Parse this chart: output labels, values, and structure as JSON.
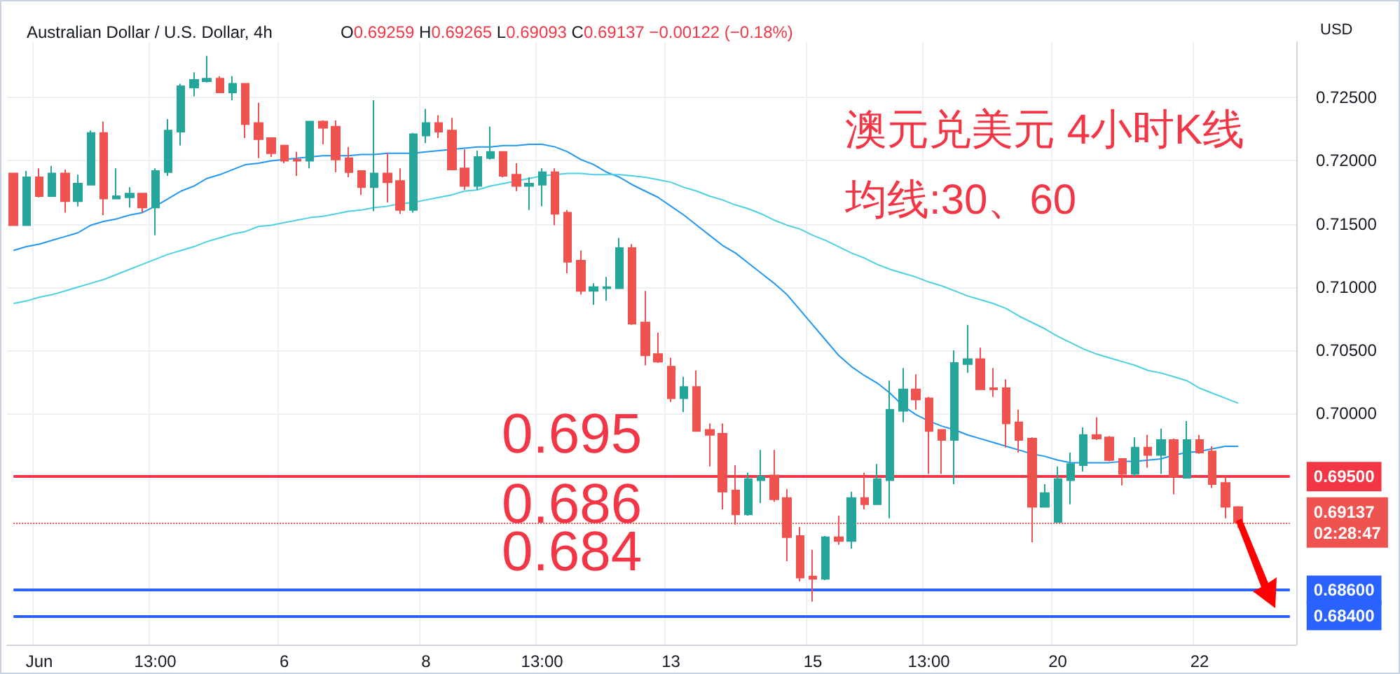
{
  "chart_data": {
    "type": "candlestick",
    "title": "Australian Dollar / U.S. Dollar, 4h",
    "subtitle": "O0.69259 H0.69265 L0.69093 C0.69137 −0.00122 (−0.18%)",
    "ylabel": "USD",
    "annotations": [
      "澳元兑美元 4小时K线",
      "均线:30、60",
      "0.695",
      "0.686",
      "0.684"
    ],
    "categories": [
      null,
      null,
      "Jun",
      null,
      null,
      null,
      null,
      null,
      null,
      null,
      null,
      "13:00",
      null,
      null,
      null,
      null,
      null,
      null,
      null,
      null,
      null,
      "6",
      null,
      null,
      null,
      null,
      null,
      null,
      null,
      null,
      null,
      null,
      "8",
      null,
      null,
      null,
      null,
      null,
      null,
      null,
      null,
      "13:00",
      null,
      null,
      null,
      null,
      null,
      null,
      null,
      null,
      null,
      "13",
      null,
      null,
      null,
      null,
      null,
      null,
      null,
      null,
      null,
      null,
      "15",
      null,
      null,
      null,
      null,
      null,
      null,
      null,
      null,
      "13:00",
      null,
      null,
      null,
      null,
      null,
      null,
      null,
      null,
      null,
      "20",
      null,
      null,
      null,
      null,
      null,
      null,
      null,
      null,
      null,
      null,
      "22",
      null,
      null,
      null,
      null,
      null,
      null,
      null
    ],
    "series": [
      {
        "type": "candlestick",
        "ohlc": [
          [
            0.719,
            0.719,
            0.7149,
            0.7149
          ],
          [
            0.7149,
            0.7192,
            0.7149,
            0.7187
          ],
          [
            0.7187,
            0.7194,
            0.7171,
            0.7172
          ],
          [
            0.7172,
            0.7196,
            0.7172,
            0.719
          ],
          [
            0.719,
            0.7193,
            0.7159,
            0.7168
          ],
          [
            0.7168,
            0.7189,
            0.7164,
            0.7182
          ],
          [
            0.7181,
            0.7224,
            0.7181,
            0.7222
          ],
          [
            0.7222,
            0.7231,
            0.7157,
            0.717
          ],
          [
            0.717,
            0.7194,
            0.717,
            0.7172
          ],
          [
            0.7171,
            0.7179,
            0.7163,
            0.7174
          ],
          [
            0.7174,
            0.7174,
            0.7159,
            0.7163
          ],
          [
            0.7163,
            0.7194,
            0.7141,
            0.7192
          ],
          [
            0.7191,
            0.7233,
            0.7188,
            0.7224
          ],
          [
            0.7223,
            0.7261,
            0.7212,
            0.7259
          ],
          [
            0.7258,
            0.727,
            0.7251,
            0.7264
          ],
          [
            0.7263,
            0.7283,
            0.7262,
            0.7265
          ],
          [
            0.7265,
            0.7267,
            0.7254,
            0.7254
          ],
          [
            0.7254,
            0.7267,
            0.7248,
            0.7261
          ],
          [
            0.7261,
            0.7261,
            0.7218,
            0.7229
          ],
          [
            0.723,
            0.7246,
            0.7202,
            0.7217
          ],
          [
            0.7218,
            0.7218,
            0.7203,
            0.7206
          ],
          [
            0.7212,
            0.7212,
            0.7198,
            0.72
          ],
          [
            0.7201,
            0.7207,
            0.7188,
            0.72
          ],
          [
            0.72,
            0.7231,
            0.7194,
            0.7231
          ],
          [
            0.7231,
            0.7232,
            0.7213,
            0.7226
          ],
          [
            0.7227,
            0.7232,
            0.7191,
            0.7201
          ],
          [
            0.7202,
            0.7211,
            0.7187,
            0.7191
          ],
          [
            0.7192,
            0.7192,
            0.7173,
            0.7179
          ],
          [
            0.7179,
            0.7248,
            0.716,
            0.719
          ],
          [
            0.719,
            0.7206,
            0.7167,
            0.7183
          ],
          [
            0.7184,
            0.7194,
            0.7158,
            0.7161
          ],
          [
            0.7161,
            0.7222,
            0.7159,
            0.7221
          ],
          [
            0.722,
            0.7241,
            0.7214,
            0.723
          ],
          [
            0.723,
            0.7236,
            0.7218,
            0.7223
          ],
          [
            0.7224,
            0.7234,
            0.7193,
            0.7193
          ],
          [
            0.7194,
            0.7209,
            0.7177,
            0.718
          ],
          [
            0.718,
            0.7208,
            0.7177,
            0.7203
          ],
          [
            0.7202,
            0.7227,
            0.7201,
            0.7207
          ],
          [
            0.7207,
            0.7207,
            0.7187,
            0.7188
          ],
          [
            0.7189,
            0.7198,
            0.7176,
            0.718
          ],
          [
            0.718,
            0.7187,
            0.7161,
            0.7182
          ],
          [
            0.7181,
            0.7194,
            0.7164,
            0.7191
          ],
          [
            0.7191,
            0.7194,
            0.7149,
            0.7158
          ],
          [
            0.7159,
            0.7161,
            0.7111,
            0.712
          ],
          [
            0.7121,
            0.7129,
            0.7094,
            0.7097
          ],
          [
            0.7097,
            0.7103,
            0.7086,
            0.71
          ],
          [
            0.7099,
            0.7108,
            0.7089,
            0.71
          ],
          [
            0.7099,
            0.7139,
            0.7099,
            0.7131
          ],
          [
            0.7131,
            0.7134,
            0.707,
            0.7071
          ],
          [
            0.7072,
            0.7097,
            0.7038,
            0.7046
          ],
          [
            0.7047,
            0.7064,
            0.704,
            0.7041
          ],
          [
            0.7037,
            0.7044,
            0.7009,
            0.7012
          ],
          [
            0.7012,
            0.7029,
            0.7001,
            0.7021
          ],
          [
            0.7021,
            0.7034,
            0.6986,
            0.6986
          ],
          [
            0.6987,
            0.6992,
            0.6958,
            0.6983
          ],
          [
            0.6984,
            0.6992,
            0.6924,
            0.6938
          ],
          [
            0.6939,
            0.6959,
            0.6912,
            0.692
          ],
          [
            0.692,
            0.6953,
            0.6919,
            0.6948
          ],
          [
            0.6947,
            0.6971,
            0.6929,
            0.695
          ],
          [
            0.6951,
            0.6971,
            0.693,
            0.6932
          ],
          [
            0.6933,
            0.694,
            0.6883,
            0.6902
          ],
          [
            0.6903,
            0.691,
            0.6867,
            0.687
          ],
          [
            0.6871,
            0.6892,
            0.6851,
            0.6869
          ],
          [
            0.6869,
            0.6903,
            0.6868,
            0.6902
          ],
          [
            0.6902,
            0.6919,
            0.6896,
            0.6899
          ],
          [
            0.6899,
            0.6938,
            0.6893,
            0.6933
          ],
          [
            0.6933,
            0.6953,
            0.6924,
            0.6928
          ],
          [
            0.6928,
            0.696,
            0.6928,
            0.6948
          ],
          [
            0.6947,
            0.7026,
            0.6917,
            0.7003
          ],
          [
            0.7002,
            0.7036,
            0.6993,
            0.7019
          ],
          [
            0.7019,
            0.7031,
            0.7003,
            0.7011
          ],
          [
            0.7012,
            0.7013,
            0.6952,
            0.6986
          ],
          [
            0.6987,
            0.6987,
            0.6952,
            0.6979
          ],
          [
            0.6979,
            0.705,
            0.6944,
            0.704
          ],
          [
            0.7039,
            0.707,
            0.7032,
            0.7043
          ],
          [
            0.7043,
            0.7052,
            0.7019,
            0.7019
          ],
          [
            0.702,
            0.7036,
            0.7013,
            0.7019
          ],
          [
            0.702,
            0.7027,
            0.6973,
            0.6992
          ],
          [
            0.6993,
            0.7003,
            0.6969,
            0.6979
          ],
          [
            0.698,
            0.6981,
            0.6898,
            0.6926
          ],
          [
            0.6926,
            0.6944,
            0.6926,
            0.6937
          ],
          [
            0.6914,
            0.6958,
            0.6914,
            0.6948
          ],
          [
            0.6947,
            0.6969,
            0.6928,
            0.696
          ],
          [
            0.6959,
            0.6989,
            0.6954,
            0.6983
          ],
          [
            0.6983,
            0.6997,
            0.6979,
            0.698
          ],
          [
            0.6981,
            0.6982,
            0.6962,
            0.6963
          ],
          [
            0.6964,
            0.6964,
            0.6943,
            0.6952
          ],
          [
            0.6952,
            0.6981,
            0.695,
            0.6973
          ],
          [
            0.6973,
            0.6983,
            0.6957,
            0.6967
          ],
          [
            0.6967,
            0.6988,
            0.6952,
            0.6979
          ],
          [
            0.6979,
            0.698,
            0.6936,
            0.695
          ],
          [
            0.6949,
            0.6994,
            0.6949,
            0.6979
          ],
          [
            0.6979,
            0.6983,
            0.6968,
            0.6969
          ],
          [
            0.697,
            0.6974,
            0.6941,
            0.6944
          ],
          [
            0.6945,
            0.6951,
            0.6917,
            0.6926
          ],
          [
            0.69259,
            0.69265,
            0.69093,
            0.69137
          ],
          null,
          null,
          null,
          null
        ],
        "colors": [
          "#ef5350",
          "#26a69a",
          "#ef5350",
          "#26a69a",
          "#ef5350",
          "#26a69a",
          "#26a69a",
          "#ef5350",
          "#26a69a",
          "#26a69a",
          "#ef5350",
          "#26a69a",
          "#26a69a",
          "#26a69a",
          "#26a69a",
          "#26a69a",
          "#ef5350",
          "#26a69a",
          "#ef5350",
          "#ef5350",
          "#ef5350",
          "#ef5350",
          "#ef5350",
          "#26a69a",
          "#ef5350",
          "#ef5350",
          "#ef5350",
          "#ef5350",
          "#26a69a",
          "#ef5350",
          "#ef5350",
          "#26a69a",
          "#26a69a",
          "#ef5350",
          "#ef5350",
          "#ef5350",
          "#26a69a",
          "#26a69a",
          "#ef5350",
          "#ef5350",
          "#26a69a",
          "#26a69a",
          "#ef5350",
          "#ef5350",
          "#ef5350",
          "#26a69a",
          "#26a69a",
          "#26a69a",
          "#ef5350",
          "#ef5350",
          "#ef5350",
          "#ef5350",
          "#26a69a",
          "#ef5350",
          "#ef5350",
          "#ef5350",
          "#ef5350",
          "#26a69a",
          "#26a69a",
          "#ef5350",
          "#ef5350",
          "#ef5350",
          "#ef5350",
          "#26a69a",
          "#ef5350",
          "#26a69a",
          "#ef5350",
          "#26a69a",
          "#26a69a",
          "#26a69a",
          "#ef5350",
          "#ef5350",
          "#ef5350",
          "#26a69a",
          "#26a69a",
          "#ef5350",
          "#ef5350",
          "#ef5350",
          "#ef5350",
          "#ef5350",
          "#26a69a",
          "#26a69a",
          "#26a69a",
          "#26a69a",
          "#ef5350",
          "#ef5350",
          "#ef5350",
          "#26a69a",
          "#ef5350",
          "#26a69a",
          "#ef5350",
          "#26a69a",
          "#ef5350",
          "#ef5350",
          "#ef5350",
          "#ef5350",
          null,
          null,
          null,
          null
        ]
      },
      {
        "type": "line",
        "color": "#2196f3",
        "values": [
          0.7129,
          0.7132,
          0.7134,
          0.7137,
          0.714,
          0.7143,
          0.7149,
          0.7152,
          0.7154,
          0.7157,
          0.7159,
          0.7164,
          0.717,
          0.7176,
          0.718,
          0.7186,
          0.7189,
          0.7193,
          0.7197,
          0.7198,
          0.72,
          0.7201,
          0.7202,
          0.7203,
          0.7204,
          0.7204,
          0.7204,
          0.7205,
          0.7205,
          0.7206,
          0.7206,
          0.7206,
          0.7207,
          0.7208,
          0.7209,
          0.721,
          0.7211,
          0.7211,
          0.7212,
          0.7212,
          0.7213,
          0.7213,
          0.7211,
          0.7207,
          0.7201,
          0.7197,
          0.7191,
          0.7187,
          0.7181,
          0.7176,
          0.7171,
          0.7164,
          0.7157,
          0.7149,
          0.7141,
          0.7133,
          0.7127,
          0.7119,
          0.7111,
          0.7103,
          0.7094,
          0.7082,
          0.707,
          0.7058,
          0.7046,
          0.7037,
          0.703,
          0.7024,
          0.7016,
          0.7006,
          0.6999,
          0.6994,
          0.699,
          0.6987,
          0.6983,
          0.698,
          0.6977,
          0.6974,
          0.6971,
          0.6968,
          0.6966,
          0.6963,
          0.6961,
          0.6961,
          0.6961,
          0.6961,
          0.6962,
          0.6962,
          0.6963,
          0.6964,
          0.6967,
          0.6969,
          0.697,
          0.6972,
          0.6974,
          0.6974,
          null,
          null,
          null,
          null
        ]
      },
      {
        "type": "line",
        "color": "#4dd0e1",
        "values": [
          0.7087,
          0.7089,
          0.7092,
          0.7094,
          0.7097,
          0.71,
          0.7103,
          0.7106,
          0.711,
          0.7114,
          0.7118,
          0.7122,
          0.7126,
          0.7129,
          0.7132,
          0.7136,
          0.7139,
          0.7142,
          0.7144,
          0.7148,
          0.7149,
          0.7151,
          0.7153,
          0.7155,
          0.7156,
          0.7158,
          0.716,
          0.7161,
          0.7163,
          0.7164,
          0.7166,
          0.7167,
          0.7169,
          0.7171,
          0.7173,
          0.7176,
          0.7177,
          0.718,
          0.7182,
          0.7184,
          0.7186,
          0.7188,
          0.7189,
          0.719,
          0.719,
          0.7189,
          0.7189,
          0.7189,
          0.7188,
          0.7187,
          0.7185,
          0.7183,
          0.7179,
          0.7176,
          0.7172,
          0.7169,
          0.7165,
          0.7162,
          0.7158,
          0.7153,
          0.7149,
          0.7146,
          0.7141,
          0.7137,
          0.7132,
          0.7127,
          0.7123,
          0.7118,
          0.7114,
          0.7111,
          0.7108,
          0.7104,
          0.7101,
          0.7097,
          0.7093,
          0.709,
          0.7087,
          0.7083,
          0.7077,
          0.7072,
          0.7067,
          0.7061,
          0.7056,
          0.7051,
          0.7047,
          0.7044,
          0.7041,
          0.7038,
          0.7034,
          0.7032,
          0.7029,
          0.7026,
          0.702,
          0.7016,
          0.7012,
          0.7008,
          null,
          null,
          null,
          null
        ]
      }
    ],
    "ylim": [
      0.6817,
      0.7294
    ],
    "yticks": [
      {
        "value": 0.7,
        "label": "0.70000"
      },
      {
        "value": 0.705,
        "label": "0.70500"
      },
      {
        "value": 0.71,
        "label": "0.71000"
      },
      {
        "value": 0.715,
        "label": "0.71500"
      },
      {
        "value": 0.72,
        "label": "0.72000"
      },
      {
        "value": 0.725,
        "label": "0.72500"
      }
    ],
    "ref_lines": [
      {
        "axis": "y",
        "value": 0.695,
        "label": "0.69500",
        "color": "#f23645",
        "line_style": "solid"
      },
      {
        "axis": "y",
        "value": 0.69137,
        "label": "0.69137\n02:28:47",
        "color": "#ef5350",
        "line_style": "dotted"
      },
      {
        "axis": "y",
        "value": 0.686,
        "label": "0.68600",
        "color": "#2962ff",
        "line_style": "solid"
      },
      {
        "axis": "y",
        "value": 0.684,
        "label": "0.68400",
        "color": "#2962ff",
        "line_style": "solid"
      }
    ],
    "grid": true,
    "marker": "none"
  }
}
